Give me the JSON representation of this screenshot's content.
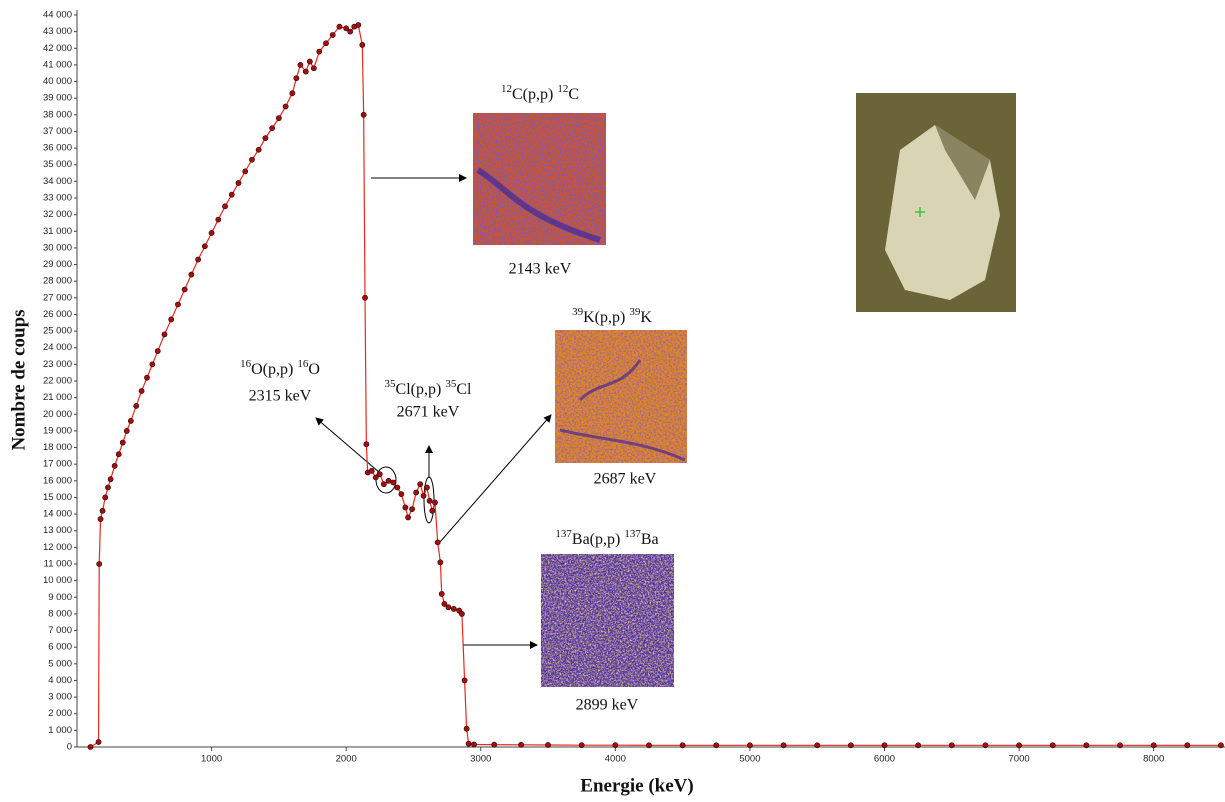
{
  "chart_data": {
    "type": "line",
    "ylabel": "Nombre de coups",
    "xlabel": "Energie (keV)",
    "color": "#e8291f",
    "marker_color": "#a01010",
    "xlim": [
      0,
      8530
    ],
    "ylim": [
      0,
      44000
    ],
    "xticks": [
      1000,
      2000,
      3000,
      4000,
      5000,
      6000,
      7000,
      8000
    ],
    "yticks": [
      0,
      {
        "value": 1000,
        "label": "1 000"
      },
      {
        "value": 2000,
        "label": "2 000"
      },
      {
        "value": 3000,
        "label": "3 000"
      },
      {
        "value": 4000,
        "label": "4 000"
      },
      {
        "value": 5000,
        "label": "5 000"
      },
      {
        "value": 6000,
        "label": "6 000"
      },
      {
        "value": 7000,
        "label": "7 000"
      },
      {
        "value": 8000,
        "label": "8 000"
      },
      {
        "value": 9000,
        "label": "9 000"
      },
      {
        "value": 10000,
        "label": "10 000"
      },
      {
        "value": 11000,
        "label": "11 000"
      },
      {
        "value": 12000,
        "label": "12 000"
      },
      {
        "value": 13000,
        "label": "13 000"
      },
      {
        "value": 14000,
        "label": "14 000"
      },
      {
        "value": 15000,
        "label": "15 000"
      },
      {
        "value": 16000,
        "label": "16 000"
      },
      {
        "value": 17000,
        "label": "17 000"
      },
      {
        "value": 18000,
        "label": "18 000"
      },
      {
        "value": 19000,
        "label": "19 000"
      },
      {
        "value": 20000,
        "label": "20 000"
      },
      {
        "value": 21000,
        "label": "21 000"
      },
      {
        "value": 22000,
        "label": "22 000"
      },
      {
        "value": 23000,
        "label": "23 000"
      },
      {
        "value": 24000,
        "label": "24 000"
      },
      {
        "value": 25000,
        "label": "25 000"
      },
      {
        "value": 26000,
        "label": "26 000"
      },
      {
        "value": 27000,
        "label": "27 000"
      },
      {
        "value": 28000,
        "label": "28 000"
      },
      {
        "value": 29000,
        "label": "29 000"
      },
      {
        "value": 30000,
        "label": "30 000"
      },
      {
        "value": 31000,
        "label": "31 000"
      },
      {
        "value": 32000,
        "label": "32 000"
      },
      {
        "value": 33000,
        "label": "33 000"
      },
      {
        "value": 34000,
        "label": "34 000"
      },
      {
        "value": 35000,
        "label": "35 000"
      },
      {
        "value": 36000,
        "label": "36 000"
      },
      {
        "value": 37000,
        "label": "37 000"
      },
      {
        "value": 38000,
        "label": "38 000"
      },
      {
        "value": 39000,
        "label": "39 000"
      },
      {
        "value": 40000,
        "label": "40 000"
      },
      {
        "value": 41000,
        "label": "41 000"
      },
      {
        "value": 42000,
        "label": "42 000"
      },
      {
        "value": 43000,
        "label": "43 000"
      },
      {
        "value": 44000,
        "label": "44 000"
      }
    ],
    "x": [
      100,
      160,
      165,
      175,
      190,
      210,
      230,
      250,
      280,
      310,
      340,
      370,
      400,
      440,
      480,
      520,
      560,
      600,
      650,
      700,
      750,
      800,
      850,
      900,
      950,
      1000,
      1050,
      1100,
      1150,
      1200,
      1250,
      1300,
      1350,
      1400,
      1450,
      1500,
      1550,
      1600,
      1630,
      1660,
      1700,
      1730,
      1760,
      1800,
      1850,
      1900,
      1950,
      2000,
      2030,
      2060,
      2090,
      2120,
      2130,
      2140,
      2150,
      2160,
      2190,
      2220,
      2250,
      2280,
      2315,
      2350,
      2380,
      2410,
      2440,
      2460,
      2490,
      2520,
      2550,
      2575,
      2600,
      2620,
      2640,
      2660,
      2680,
      2700,
      2710,
      2730,
      2760,
      2800,
      2840,
      2860,
      2880,
      2895,
      2910,
      2950,
      3100,
      3300,
      3500,
      3750,
      4000,
      4250,
      4500,
      4750,
      5000,
      5250,
      5500,
      5750,
      6000,
      6250,
      6500,
      6750,
      7000,
      7250,
      7500,
      7750,
      8000,
      8250,
      8500
    ],
    "values": [
      0,
      300,
      11000,
      13700,
      14200,
      15000,
      15600,
      16100,
      16900,
      17600,
      18300,
      19000,
      19600,
      20500,
      21400,
      22200,
      23000,
      23800,
      24800,
      25700,
      26600,
      27500,
      28400,
      29300,
      30100,
      30900,
      31700,
      32500,
      33200,
      33900,
      34600,
      35300,
      35900,
      36600,
      37200,
      37800,
      38500,
      39300,
      40200,
      41000,
      40600,
      41200,
      40800,
      41800,
      42300,
      42800,
      43300,
      43200,
      43000,
      43300,
      43400,
      42200,
      38000,
      27000,
      18200,
      16500,
      16600,
      16200,
      16400,
      15800,
      16000,
      15900,
      15600,
      15200,
      14400,
      13800,
      14300,
      15300,
      15800,
      15100,
      15600,
      14800,
      14200,
      14700,
      12300,
      11100,
      9200,
      8600,
      8400,
      8300,
      8200,
      8000,
      4000,
      1100,
      200,
      150,
      140,
      130,
      120,
      110,
      110,
      100,
      100,
      100,
      100,
      100,
      100,
      100,
      100,
      100,
      100,
      100,
      100,
      100,
      100,
      100,
      100,
      100,
      100
    ],
    "annotations": [
      {
        "parts": [
          "12",
          "C(p,p) ",
          "12",
          "C"
        ],
        "energy": "2143 keV"
      },
      {
        "parts": [
          "39",
          "K(p,p) ",
          "39",
          "K"
        ],
        "energy": "2687 keV"
      },
      {
        "parts": [
          "137",
          "Ba(p,p) ",
          "137",
          "Ba"
        ],
        "energy": "2899 keV"
      },
      {
        "parts": [
          "16",
          "O(p,p) ",
          "16",
          "O"
        ],
        "energy": "2315 keV"
      },
      {
        "parts": [
          "35",
          "Cl(p,p) ",
          "35",
          "Cl"
        ],
        "energy": "2671 keV"
      }
    ]
  }
}
